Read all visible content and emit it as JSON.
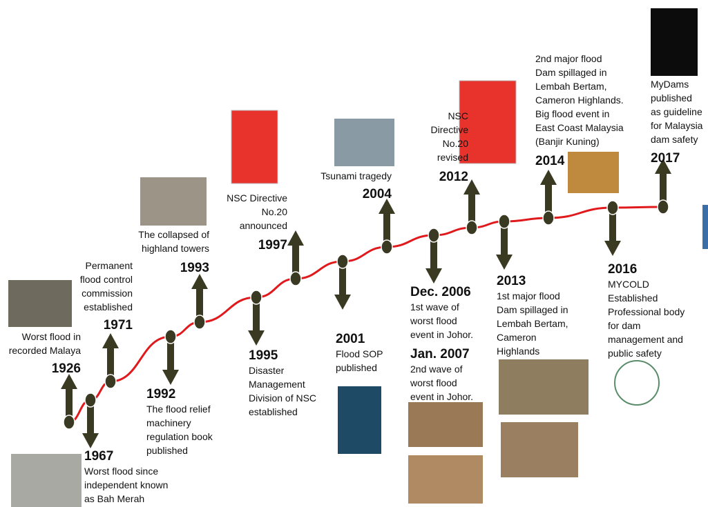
{
  "events": [
    {
      "year": "1926",
      "text": [
        "Worst flood in",
        "recorded Malaya"
      ]
    },
    {
      "year": "1967",
      "text": [
        "Worst flood since",
        "independent known",
        "as Bah Merah"
      ]
    },
    {
      "year": "1971",
      "text": [
        "Permanent",
        "flood control",
        "commission",
        "established"
      ]
    },
    {
      "year": "1992",
      "text": [
        "The flood relief",
        "machinery",
        "regulation book",
        "published"
      ]
    },
    {
      "year": "1993",
      "text": [
        "The collapsed of",
        "highland towers"
      ]
    },
    {
      "year": "1995",
      "text": [
        "Disaster",
        "Management",
        "Division of NSC",
        "established"
      ]
    },
    {
      "year": "1997",
      "text": [
        "NSC Directive",
        "No.20",
        "announced"
      ]
    },
    {
      "year": "2001",
      "text": [
        "Flood SOP",
        "published"
      ]
    },
    {
      "year": "2004",
      "text": [
        "Tsunami tragedy"
      ]
    },
    {
      "year": "Dec. 2006",
      "text": [
        "1st wave of",
        "worst flood",
        "event in Johor."
      ]
    },
    {
      "year": "Jan. 2007",
      "text": [
        "2nd wave of",
        "worst flood",
        "event in Johor."
      ]
    },
    {
      "year": "2012",
      "text": [
        "NSC",
        "Directive",
        "No.20",
        "revised"
      ]
    },
    {
      "year": "2013",
      "text": [
        "1st major flood",
        "Dam spillaged in",
        "Lembah Bertam,",
        "Cameron",
        "Highlands"
      ]
    },
    {
      "year": "2014",
      "text": [
        "2nd major flood",
        "Dam spillaged in",
        "Lembah Bertam,",
        "Cameron Highlands.",
        "Big flood event in",
        "East Coast Malaysia",
        "(Banjir Kuning)"
      ]
    },
    {
      "year": "2016",
      "text": [
        "MYCOLD",
        "Established",
        "Professional body",
        "for dam",
        "management and",
        "public safety"
      ]
    },
    {
      "year": "2017",
      "text": [
        "MyDams",
        "published",
        "as guideline",
        "for Malaysia",
        "dam safety"
      ]
    }
  ]
}
